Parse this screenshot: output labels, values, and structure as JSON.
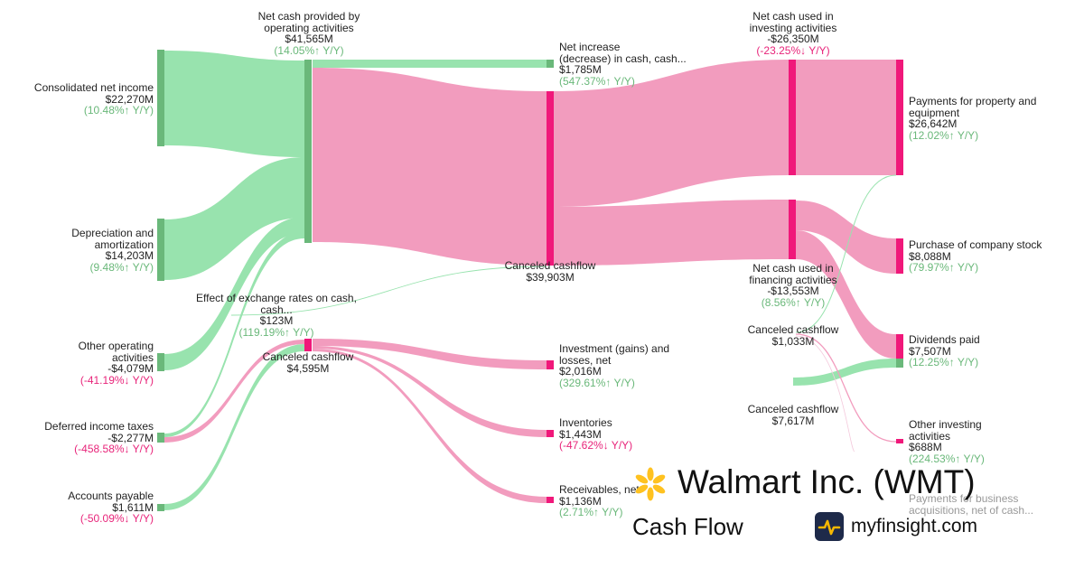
{
  "company": {
    "name": "Walmart Inc. (WMT)",
    "subtitle": "Cash Flow",
    "site": "myfinsight.com",
    "logo_icon": "walmart-spark-icon",
    "site_icon": "myfinsight-pulse-icon",
    "logo_color": "#ffc220"
  },
  "colors": {
    "inflow_node": "#6ab87a",
    "inflow_link": "#98e3ae",
    "outflow_node": "#f0187a",
    "outflow_link": "#f29cbe"
  },
  "chart_data": {
    "type": "sankey",
    "nodes": [
      {
        "id": "consolidated_net_income",
        "name": "Consolidated net income",
        "value": "$22,270M",
        "change": "(10.48%↑ Y/Y)",
        "direction": "up"
      },
      {
        "id": "depreciation",
        "name": "Depreciation and amortization",
        "value": "$14,203M",
        "change": "(9.48%↑ Y/Y)",
        "direction": "up"
      },
      {
        "id": "other_operating",
        "name": "Other operating activities",
        "value": "-$4,079M",
        "change": "(-41.19%↓ Y/Y)",
        "direction": "down"
      },
      {
        "id": "deferred_taxes",
        "name": "Deferred income taxes",
        "value": "-$2,277M",
        "change": "(-458.58%↓ Y/Y)",
        "direction": "down"
      },
      {
        "id": "accounts_payable",
        "name": "Accounts payable",
        "value": "$1,611M",
        "change": "(-50.09%↓ Y/Y)",
        "direction": "down"
      },
      {
        "id": "operating_cf",
        "name": "Net cash provided by operating activities",
        "value": "$41,565M",
        "change": "(14.05%↑ Y/Y)",
        "direction": "up"
      },
      {
        "id": "fx_effect",
        "name": "Effect of exchange rates on cash, cash...",
        "value": "$123M",
        "change": "(119.19%↑ Y/Y)",
        "direction": "up"
      },
      {
        "id": "canceled_4595",
        "name": "Canceled cashflow",
        "value": "$4,595M"
      },
      {
        "id": "net_increase",
        "name": "Net increase (decrease) in cash, cash...",
        "value": "$1,785M",
        "change": "(547.37%↑ Y/Y)",
        "direction": "up"
      },
      {
        "id": "canceled_39903",
        "name": "Canceled cashflow",
        "value": "$39,903M"
      },
      {
        "id": "investment_gains",
        "name": "Investment (gains) and losses, net",
        "value": "$2,016M",
        "change": "(329.61%↑ Y/Y)",
        "direction": "up"
      },
      {
        "id": "inventories",
        "name": "Inventories",
        "value": "$1,443M",
        "change": "(-47.62%↓ Y/Y)",
        "direction": "down"
      },
      {
        "id": "receivables",
        "name": "Receivables, net",
        "value": "$1,136M",
        "change": "(2.71%↑ Y/Y)",
        "direction": "up"
      },
      {
        "id": "investing_cf",
        "name": "Net cash used in investing activities",
        "value": "-$26,350M",
        "change": "(-23.25%↓ Y/Y)",
        "direction": "down"
      },
      {
        "id": "financing_cf",
        "name": "Net cash used in financing activities",
        "value": "-$13,553M",
        "change": "(8.56%↑ Y/Y)",
        "direction": "up"
      },
      {
        "id": "canceled_1033",
        "name": "Canceled cashflow",
        "value": "$1,033M"
      },
      {
        "id": "canceled_7617",
        "name": "Canceled cashflow",
        "value": "$7,617M"
      },
      {
        "id": "capex",
        "name": "Payments for property and equipment",
        "value": "$26,642M",
        "change": "(12.02%↑ Y/Y)",
        "direction": "up"
      },
      {
        "id": "buyback",
        "name": "Purchase of company stock",
        "value": "$8,088M",
        "change": "(79.97%↑ Y/Y)",
        "direction": "up"
      },
      {
        "id": "dividends",
        "name": "Dividends paid",
        "value": "$7,507M",
        "change": "(12.25%↑ Y/Y)",
        "direction": "up"
      },
      {
        "id": "other_investing",
        "name": "Other investing activities",
        "value": "$688M",
        "change": "(224.53%↑ Y/Y)",
        "direction": "up"
      },
      {
        "id": "acquisitions",
        "name": "Payments for business acquisitions, net of cash..."
      }
    ],
    "links": [
      {
        "source": "consolidated_net_income",
        "target": "operating_cf",
        "value": 22270,
        "kind": "in"
      },
      {
        "source": "depreciation",
        "target": "operating_cf",
        "value": 14203,
        "kind": "in"
      },
      {
        "source": "other_operating",
        "target": "operating_cf",
        "value": 4079,
        "kind": "in"
      },
      {
        "source": "deferred_taxes",
        "target": "operating_cf",
        "value": 2277,
        "kind": "in"
      },
      {
        "source": "deferred_taxes",
        "target": "canceled_4595",
        "value": 2277,
        "kind": "out"
      },
      {
        "source": "accounts_payable",
        "target": "canceled_4595",
        "value": 1611,
        "kind": "in"
      },
      {
        "source": "operating_cf",
        "target": "net_increase",
        "value": 1785,
        "kind": "in"
      },
      {
        "source": "operating_cf",
        "target": "canceled_39903",
        "value": 39903,
        "kind": "out"
      },
      {
        "source": "fx_effect",
        "target": "canceled_39903",
        "value": 123,
        "kind": "in"
      },
      {
        "source": "canceled_4595",
        "target": "investment_gains",
        "value": 2016,
        "kind": "out"
      },
      {
        "source": "canceled_4595",
        "target": "inventories",
        "value": 1443,
        "kind": "out"
      },
      {
        "source": "canceled_4595",
        "target": "receivables",
        "value": 1136,
        "kind": "out"
      },
      {
        "source": "canceled_39903",
        "target": "investing_cf",
        "value": 26350,
        "kind": "out"
      },
      {
        "source": "canceled_39903",
        "target": "financing_cf",
        "value": 13553,
        "kind": "out"
      },
      {
        "source": "investing_cf",
        "target": "capex",
        "value": 26642,
        "kind": "out"
      },
      {
        "source": "financing_cf",
        "target": "buyback",
        "value": 8088,
        "kind": "out"
      },
      {
        "source": "financing_cf",
        "target": "dividends",
        "value": 7507,
        "kind": "out"
      },
      {
        "source": "canceled_7617",
        "target": "dividends",
        "value": 7617,
        "kind": "in"
      },
      {
        "source": "canceled_1033",
        "target": "capex",
        "value": 1033,
        "kind": "in"
      },
      {
        "source": "canceled_1033",
        "target": "other_investing",
        "value": 688,
        "kind": "out"
      },
      {
        "source": "canceled_1033",
        "target": "acquisitions",
        "value": 345,
        "kind": "out"
      }
    ]
  }
}
